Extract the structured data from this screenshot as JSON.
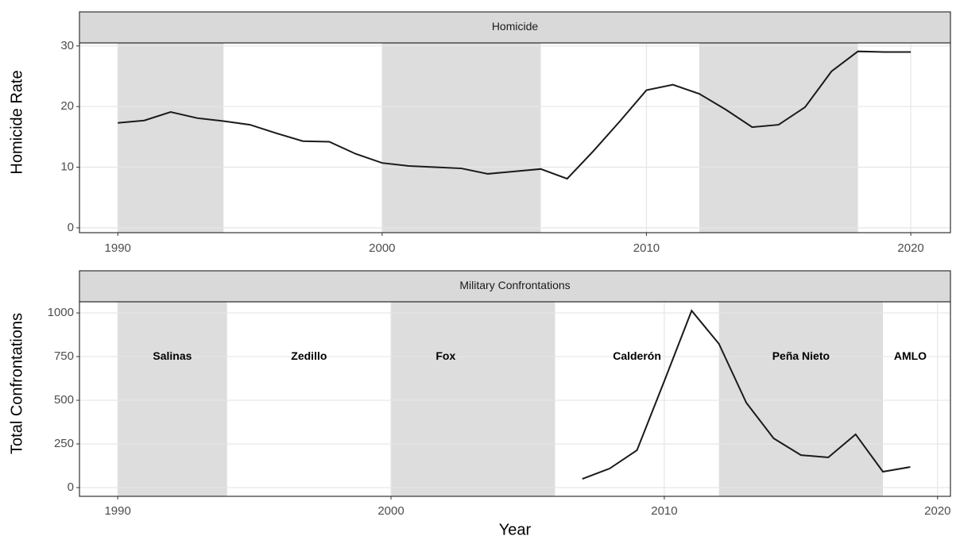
{
  "chart_data": [
    {
      "type": "line",
      "title": "Homicide",
      "y_label": "Homicide Rate",
      "x": [
        1990,
        1991,
        1992,
        1993,
        1994,
        1995,
        1996,
        1997,
        1998,
        1999,
        2000,
        2001,
        2002,
        2003,
        2004,
        2005,
        2006,
        2007,
        2008,
        2009,
        2010,
        2011,
        2012,
        2013,
        2014,
        2015,
        2016,
        2017,
        2018,
        2019,
        2020
      ],
      "series": [
        {
          "color": "#1a1a1a",
          "values": [
            17.3,
            17.7,
            19.1,
            18.1,
            17.6,
            17.0,
            15.6,
            14.3,
            14.2,
            12.2,
            10.7,
            10.2,
            10.0,
            9.8,
            8.9,
            9.3,
            9.7,
            8.1,
            12.7,
            17.6,
            22.7,
            23.6,
            22.1,
            19.5,
            16.6,
            17.0,
            19.9,
            25.8,
            29.1,
            29.0,
            29.0
          ]
        }
      ],
      "shaded_periods": [
        {
          "start": 1990,
          "end": 1994
        },
        {
          "start": 2000,
          "end": 2006
        },
        {
          "start": 2012,
          "end": 2018
        }
      ],
      "shade_color": "#d9d9d9",
      "xlim": [
        1988.55,
        2021.5
      ],
      "xticks": [
        1990,
        2000,
        2010,
        2020
      ],
      "ylim": [
        -0.8,
        30.5
      ],
      "yticks": [
        0,
        10,
        20,
        30
      ],
      "grid": true
    },
    {
      "type": "line",
      "title": "Military Confrontations",
      "y_label": "Total Confrontations",
      "x_label": "Year",
      "x": [
        2007,
        2008,
        2009,
        2010,
        2011,
        2012,
        2013,
        2014,
        2015,
        2016,
        2017,
        2018,
        2019
      ],
      "series": [
        {
          "color": "#1a1a1a",
          "values": [
            50,
            109,
            214,
            610,
            1013,
            823,
            486,
            282,
            186,
            173,
            305,
            91,
            118
          ]
        }
      ],
      "shaded_periods": [
        {
          "start": 1990,
          "end": 1994
        },
        {
          "start": 2000,
          "end": 2006
        },
        {
          "start": 2012,
          "end": 2018
        }
      ],
      "shade_color": "#d9d9d9",
      "annotations": [
        {
          "text": "Salinas",
          "x": 1992,
          "y": 750
        },
        {
          "text": "Zedillo",
          "x": 1997,
          "y": 750
        },
        {
          "text": "Fox",
          "x": 2002,
          "y": 750
        },
        {
          "text": "Calderón",
          "x": 2009,
          "y": 750
        },
        {
          "text": "Peña Nieto",
          "x": 2015,
          "y": 750
        },
        {
          "text": "AMLO",
          "x": 2019,
          "y": 750
        }
      ],
      "xlim": [
        1988.6,
        2020.47
      ],
      "xticks": [
        1990,
        2000,
        2010,
        2020
      ],
      "ylim": [
        -50,
        1064
      ],
      "yticks": [
        0,
        250,
        500,
        750,
        1000
      ],
      "grid": true
    }
  ]
}
